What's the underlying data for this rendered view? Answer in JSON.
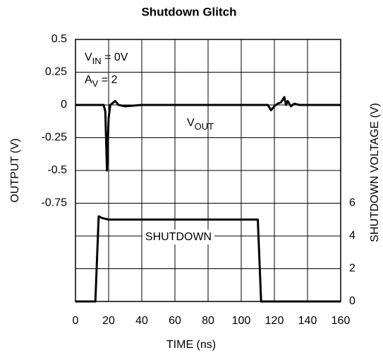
{
  "chart_data": {
    "type": "line",
    "title": "Shutdown Glitch",
    "x_label": "TIME (ns)",
    "y_label": "OUTPUT (V)",
    "y2_label": "SHUTDOWN VOLTAGE (V)",
    "xlim": [
      0,
      160
    ],
    "xticks": [
      0,
      20,
      40,
      60,
      80,
      100,
      120,
      140,
      160
    ],
    "ylim": [
      -1.5,
      0.5
    ],
    "yticks": [
      0.5,
      0.25,
      0,
      -0.25,
      -0.5,
      -0.75
    ],
    "y2lim": [
      0,
      16
    ],
    "y2ticks": [
      0,
      2,
      4,
      6
    ],
    "grid": true,
    "annotations": [
      {
        "text": "V",
        "sub": "IN",
        "after": " = 0V"
      },
      {
        "text": "A",
        "sub": "V",
        "after": " = 2"
      },
      {
        "text": "V",
        "sub": "OUT"
      }
    ],
    "series": [
      {
        "name": "VOUT",
        "color": "#000000",
        "axis": "y",
        "x": [
          0,
          17,
          18,
          19,
          20,
          21,
          22,
          24,
          26,
          30,
          40,
          116,
          118,
          120,
          122,
          124,
          126,
          127,
          128,
          130,
          132,
          135,
          140,
          160
        ],
        "values": [
          0,
          0,
          -0.05,
          -0.5,
          -0.1,
          0,
          0.01,
          0.03,
          0,
          -0.01,
          0,
          0,
          -0.04,
          -0.01,
          0.01,
          0.02,
          0.06,
          0,
          0.03,
          -0.01,
          0.01,
          0,
          0,
          0
        ]
      },
      {
        "name": "SHUTDOWN",
        "color": "#000000",
        "axis": "y2",
        "x": [
          0,
          12,
          14,
          16,
          20,
          110,
          112,
          160
        ],
        "values": [
          0,
          0,
          5.2,
          5.1,
          5.0,
          5.0,
          0,
          0
        ]
      }
    ]
  }
}
